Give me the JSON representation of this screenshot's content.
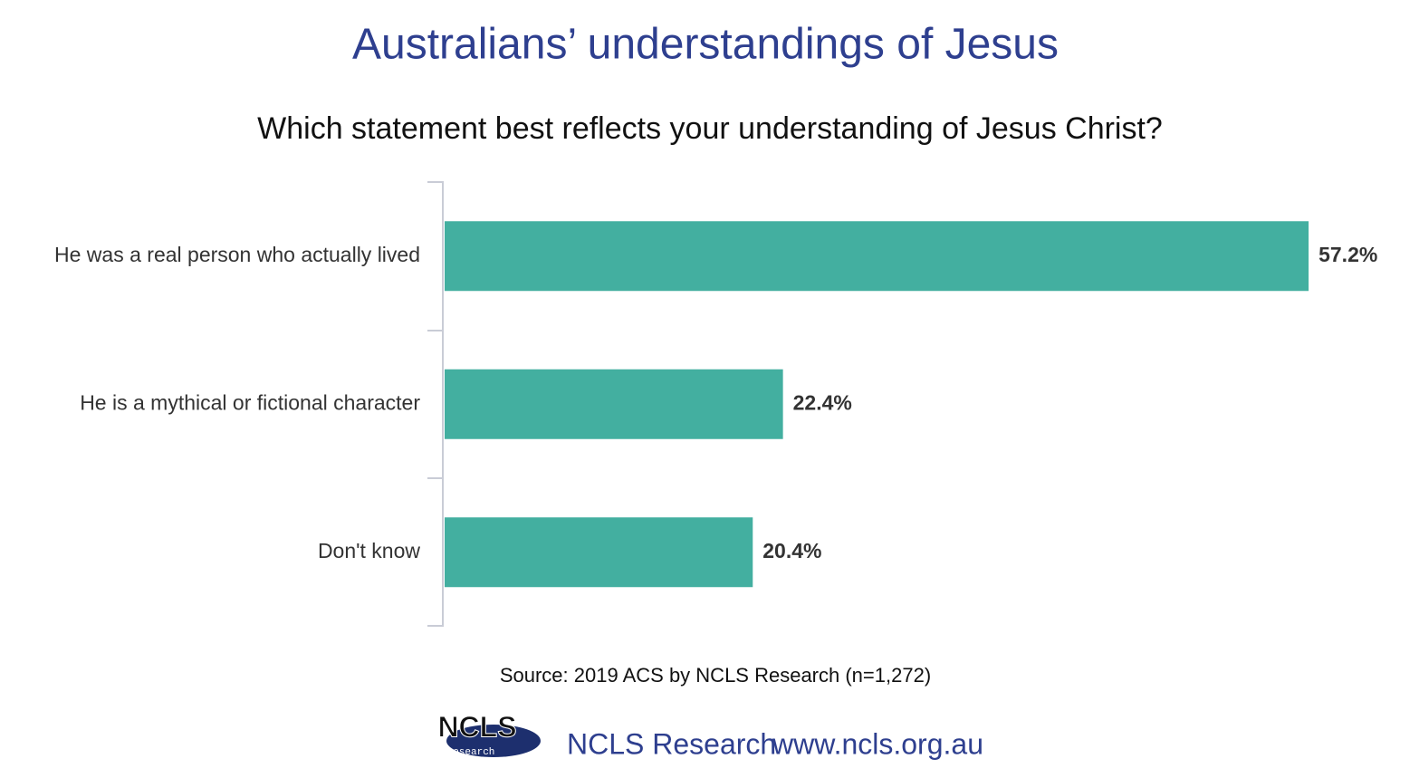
{
  "chart_data": {
    "type": "bar",
    "orientation": "horizontal",
    "title": "Australians’ understandings of Jesus",
    "subtitle": "Which statement best reflects your understanding of Jesus Christ?",
    "categories": [
      "He was a real person who actually lived",
      "He is a mythical or fictional character",
      "Don't know"
    ],
    "values": [
      57.2,
      22.4,
      20.4
    ],
    "value_labels": [
      "57.2%",
      "22.4%",
      "20.4%"
    ],
    "color": "#43afa0",
    "source": "Source: 2019 ACS by NCLS Research (n=1,272)"
  },
  "footer": {
    "logo_text": "NCLS",
    "logo_subtext": "research",
    "organization": "NCLS Research",
    "url": "www.ncls.org.au"
  }
}
